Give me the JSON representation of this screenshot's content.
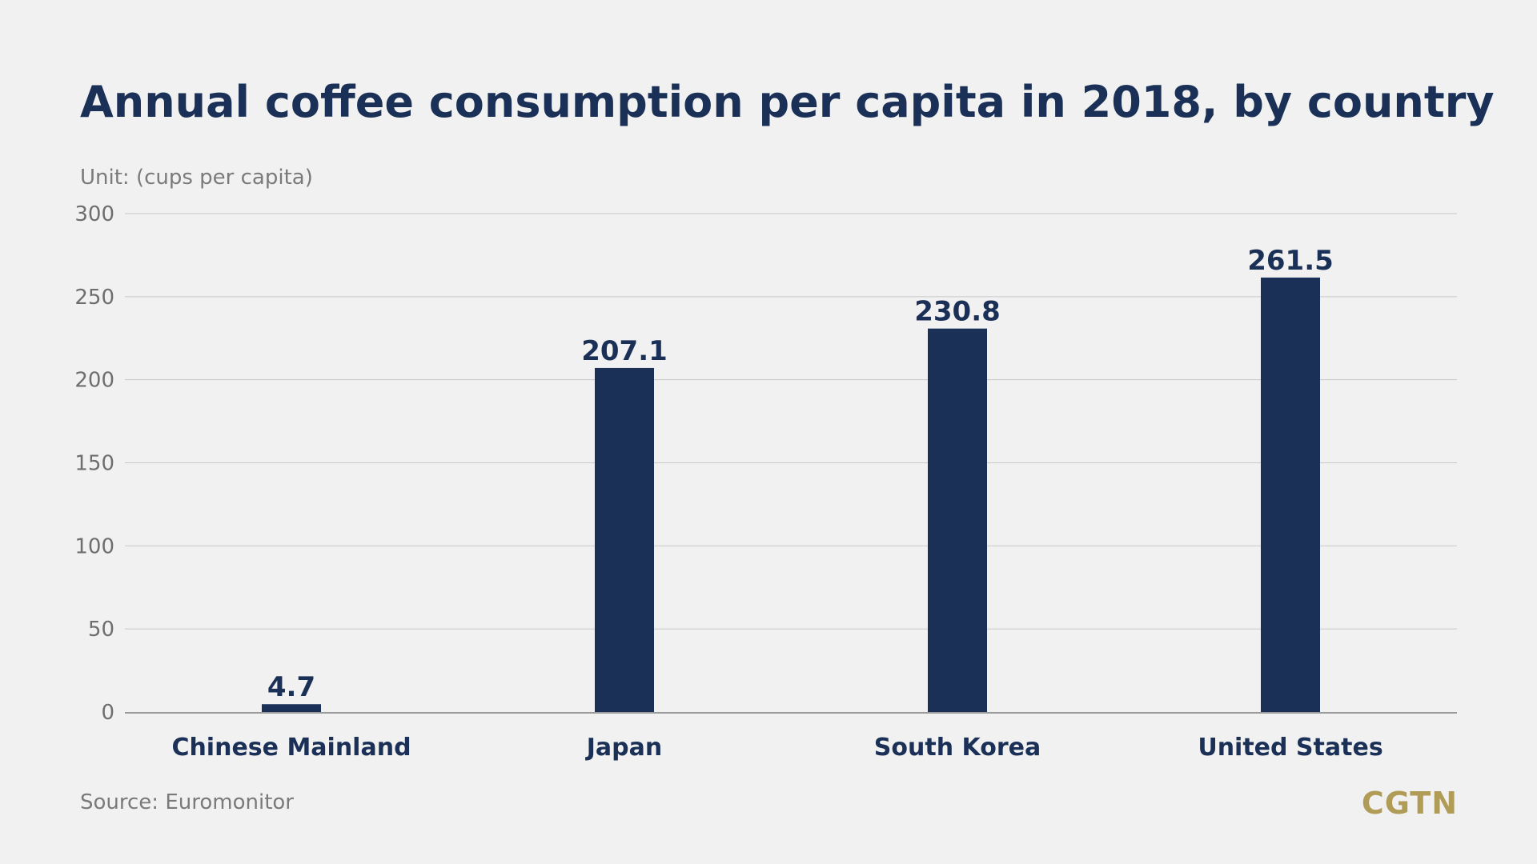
{
  "header": {
    "title": "Annual coffee consumption per capita in 2018, by country",
    "unit": "Unit: (cups per capita)"
  },
  "footer": {
    "source": "Source: Euromonitor",
    "logo": "CGTN"
  },
  "colors": {
    "background": "#f1f1f1",
    "bar": "#1a3057",
    "title": "#1a3057",
    "axis_text": "#6e6e6e",
    "gridline": "#c8c8c8",
    "logo": "#b09c57"
  },
  "chart_data": {
    "type": "bar",
    "title": "Annual coffee consumption per capita in 2018, by country",
    "ylabel": "Unit: (cups per capita)",
    "xlabel": "",
    "categories": [
      "Chinese Mainland",
      "Japan",
      "South Korea",
      "United States"
    ],
    "values": [
      4.7,
      207.1,
      230.8,
      261.5
    ],
    "value_labels": [
      "4.7",
      "207.1",
      "230.8",
      "261.5"
    ],
    "ylim": [
      0,
      300
    ],
    "yticks": [
      0,
      50,
      100,
      150,
      200,
      250,
      300
    ],
    "grid": true,
    "legend": "none"
  }
}
